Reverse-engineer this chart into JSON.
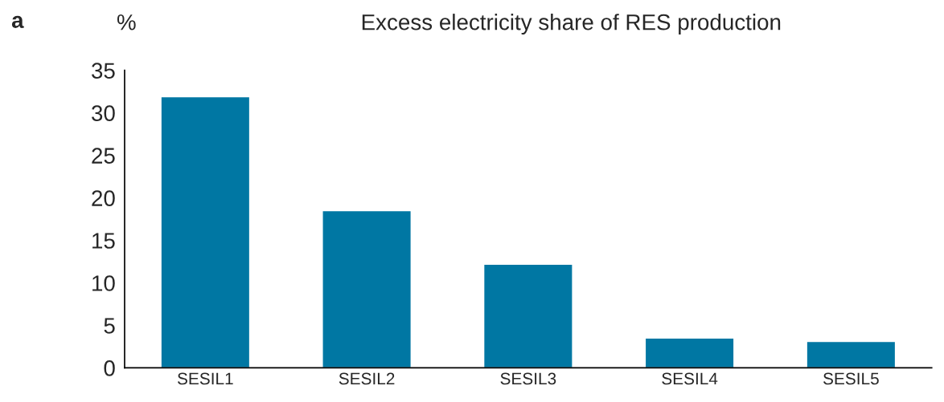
{
  "chart_data": {
    "type": "bar",
    "title": "Excess electricity share of RES production",
    "ylabel": "%",
    "annotations": [
      "a"
    ],
    "categories": [
      "SESIL1",
      "SESIL2",
      "SESIL3",
      "SESIL4",
      "SESIL5"
    ],
    "values": [
      31.9,
      18.5,
      12.2,
      3.5,
      3.1
    ],
    "color": "#0077a3",
    "ylim": [
      0,
      35
    ],
    "yticks": [
      0,
      5,
      10,
      15,
      20,
      25,
      30,
      35
    ],
    "grid": false
  }
}
